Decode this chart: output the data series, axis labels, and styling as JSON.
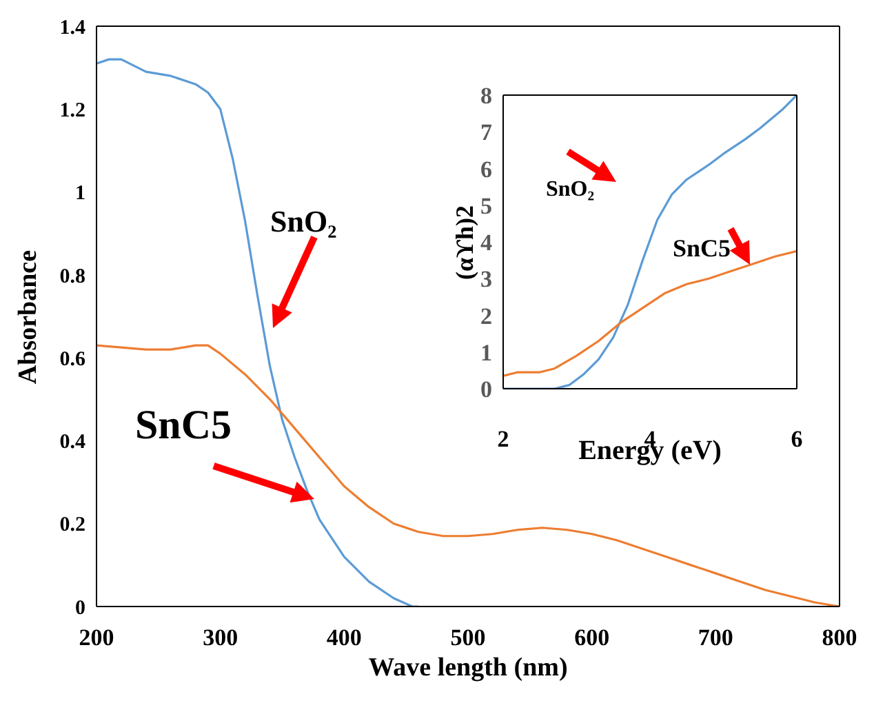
{
  "chart_data": [
    {
      "type": "line",
      "xlabel": "Wave length (nm)",
      "ylabel": "Absorbance",
      "xlim": [
        200,
        800
      ],
      "ylim": [
        0,
        1.4
      ],
      "xticks": [
        200,
        300,
        400,
        500,
        600,
        700,
        800
      ],
      "yticks": [
        0,
        0.2,
        0.4,
        0.6,
        0.8,
        1,
        1.2,
        1.4
      ],
      "marker": "none",
      "series": [
        {
          "name": "SnO₂",
          "color": "#5b9bd5",
          "x": [
            200,
            210,
            220,
            240,
            260,
            280,
            290,
            300,
            310,
            320,
            330,
            340,
            350,
            360,
            370,
            380,
            400,
            420,
            440,
            455,
            460
          ],
          "values": [
            1.31,
            1.32,
            1.32,
            1.29,
            1.28,
            1.26,
            1.24,
            1.2,
            1.08,
            0.93,
            0.75,
            0.58,
            0.45,
            0.36,
            0.28,
            0.21,
            0.12,
            0.06,
            0.02,
            0,
            0
          ]
        },
        {
          "name": "SnC5",
          "color": "#ed7d31",
          "x": [
            200,
            240,
            260,
            280,
            290,
            300,
            320,
            340,
            360,
            380,
            400,
            420,
            440,
            460,
            480,
            500,
            520,
            540,
            560,
            580,
            600,
            620,
            640,
            660,
            680,
            700,
            720,
            740,
            760,
            780,
            800
          ],
          "values": [
            0.63,
            0.62,
            0.62,
            0.63,
            0.63,
            0.61,
            0.56,
            0.5,
            0.43,
            0.36,
            0.29,
            0.24,
            0.2,
            0.18,
            0.17,
            0.17,
            0.175,
            0.185,
            0.19,
            0.185,
            0.175,
            0.16,
            0.14,
            0.12,
            0.1,
            0.08,
            0.06,
            0.04,
            0.025,
            0.01,
            0
          ]
        }
      ]
    },
    {
      "type": "line",
      "xlabel": "Energy (eV)",
      "ylabel": "(αϒh)2",
      "xlim": [
        2,
        6
      ],
      "ylim": [
        0,
        8
      ],
      "xticks": [
        2,
        4,
        6
      ],
      "yticks": [
        0,
        1,
        2,
        3,
        4,
        5,
        6,
        7,
        8
      ],
      "marker": "none",
      "series": [
        {
          "name": "SnO₂",
          "color": "#5b9bd5",
          "x": [
            2,
            2.7,
            2.9,
            3.1,
            3.3,
            3.5,
            3.7,
            3.9,
            4.1,
            4.3,
            4.5,
            4.8,
            5,
            5.3,
            5.5,
            5.8,
            6
          ],
          "values": [
            0,
            0,
            0.1,
            0.4,
            0.8,
            1.4,
            2.3,
            3.5,
            4.6,
            5.3,
            5.7,
            6.1,
            6.4,
            6.8,
            7.1,
            7.6,
            8
          ]
        },
        {
          "name": "SnC5",
          "color": "#ed7d31",
          "x": [
            2,
            2.2,
            2.5,
            2.7,
            3,
            3.3,
            3.6,
            3.9,
            4.2,
            4.5,
            4.8,
            5.1,
            5.4,
            5.7,
            6
          ],
          "values": [
            0.35,
            0.45,
            0.45,
            0.55,
            0.9,
            1.3,
            1.8,
            2.2,
            2.6,
            2.85,
            3,
            3.2,
            3.4,
            3.6,
            3.75
          ]
        }
      ]
    }
  ]
}
